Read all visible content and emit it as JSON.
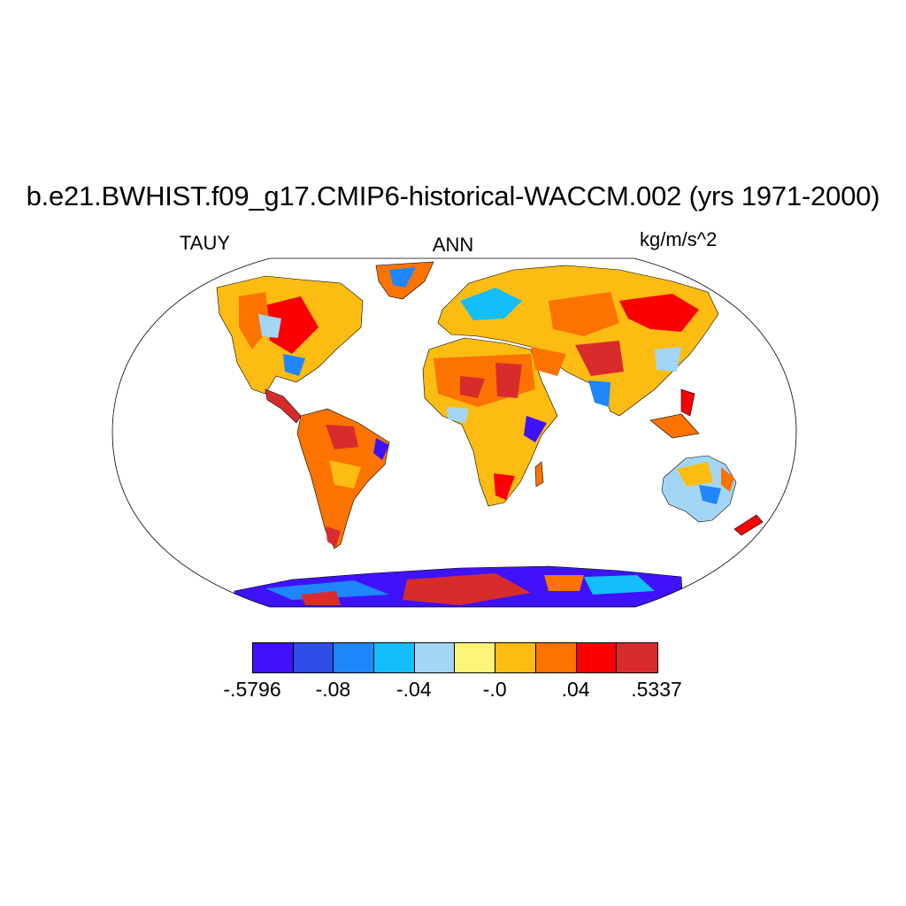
{
  "title": "b.e21.BWHIST.f09_g17.CMIP6-historical-WACCM.002 (yrs 1971-2000)",
  "labels": {
    "left": "TAUY",
    "center": "ANN",
    "right": "kg/m/s^2"
  },
  "colorbar": {
    "colors": [
      "#3f12fb",
      "#2d4de6",
      "#1f86fb",
      "#14befa",
      "#a3d6f5",
      "#fff47a",
      "#fcbc12",
      "#fc7300",
      "#fb0000",
      "#d82c2c"
    ],
    "tick_labels": [
      "-.5796",
      "-.08",
      "-.04",
      "-.0",
      ".04",
      ".5337"
    ]
  },
  "map": {
    "projection": "Robinson",
    "variable": "TAUY",
    "ocean_color": "#ffffff",
    "regions": [
      {
        "name": "North America",
        "color": "#fcbc12"
      },
      {
        "name": "South America",
        "color": "#fc7300"
      },
      {
        "name": "Africa",
        "color": "#fcbc12"
      },
      {
        "name": "Eurasia",
        "color": "#fcbc12"
      },
      {
        "name": "Australia",
        "color": "#a3d6f5"
      },
      {
        "name": "Antarctica",
        "color": "#3f12fb"
      },
      {
        "name": "Greenland",
        "color": "#fc7300"
      }
    ]
  }
}
